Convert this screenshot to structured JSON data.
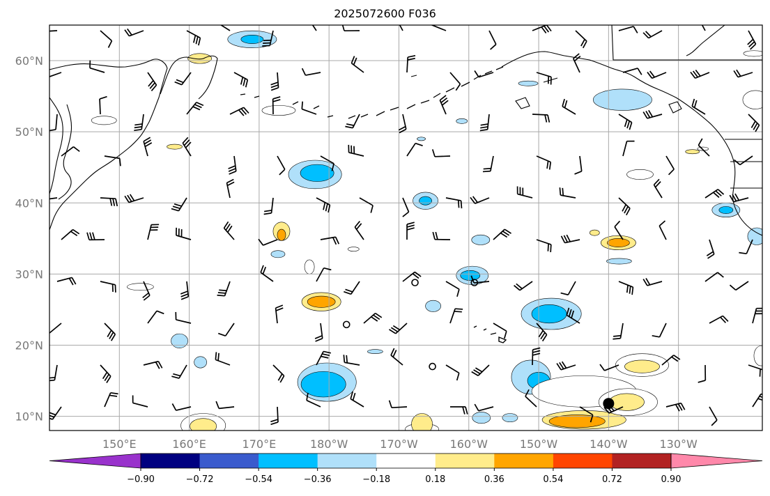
{
  "title": "2025072600 F036",
  "map": {
    "lon_range_east": [
      140,
      242
    ],
    "lat_range": [
      8,
      65
    ],
    "lat_ticks": [
      {
        "lat": 10,
        "label": "10°N"
      },
      {
        "lat": 20,
        "label": "20°N"
      },
      {
        "lat": 30,
        "label": "30°N"
      },
      {
        "lat": 40,
        "label": "40°N"
      },
      {
        "lat": 50,
        "label": "50°N"
      },
      {
        "lat": 60,
        "label": "60°N"
      }
    ],
    "lon_ticks": [
      {
        "lon": 150,
        "label": "150°E"
      },
      {
        "lon": 160,
        "label": "160°E"
      },
      {
        "lon": 170,
        "label": "170°E"
      },
      {
        "lon": 180,
        "label": "180°W"
      },
      {
        "lon": 190,
        "label": "170°W"
      },
      {
        "lon": 200,
        "label": "160°W"
      },
      {
        "lon": 210,
        "label": "150°W"
      },
      {
        "lon": 220,
        "label": "140°W"
      },
      {
        "lon": 230,
        "label": "130°W"
      }
    ],
    "gridlines": true,
    "coastline_color": "#000000",
    "grid_color": "#a8a8a8"
  },
  "colorbar": {
    "levels": [
      -0.9,
      -0.72,
      -0.54,
      -0.36,
      -0.18,
      0.18,
      0.36,
      0.54,
      0.72,
      0.9
    ],
    "labels": [
      "−0.90",
      "−0.72",
      "−0.54",
      "−0.36",
      "−0.18",
      "0.18",
      "0.36",
      "0.54",
      "0.72",
      "0.90"
    ],
    "colors": [
      "#9932cc",
      "#000080",
      "#3a5bcd",
      "#00bfff",
      "#b0e0fa",
      "#ffffff",
      "#ffec8b",
      "#ffa500",
      "#ff4500",
      "#b22222",
      "#ff88aa"
    ],
    "extend": "both"
  },
  "contours": [
    {
      "lon": 143,
      "lat": 12,
      "rx": 0,
      "ry": 0,
      "level": "none"
    },
    {
      "lon": 169,
      "lat": 63,
      "rx": 3.5,
      "ry": 1.2,
      "level": -0.36
    },
    {
      "lon": 169,
      "lat": 63,
      "rx": 1.6,
      "ry": 0.6,
      "level": -0.54
    },
    {
      "lon": 178,
      "lat": 44,
      "rx": 3.8,
      "ry": 2.0,
      "level": -0.36
    },
    {
      "lon": 178.3,
      "lat": 44.2,
      "rx": 2.4,
      "ry": 1.2,
      "level": -0.54
    },
    {
      "lon": 173.2,
      "lat": 36,
      "rx": 1.2,
      "ry": 1.3,
      "level": 0.36
    },
    {
      "lon": 173.2,
      "lat": 35.5,
      "rx": 0.6,
      "ry": 0.8,
      "level": 0.54
    },
    {
      "lon": 161.5,
      "lat": 60.3,
      "rx": 1.7,
      "ry": 0.7,
      "level": 0.36
    },
    {
      "lon": 147.8,
      "lat": 51.6,
      "rx": 1.8,
      "ry": 0.6,
      "level": 0.18
    },
    {
      "lon": 172.8,
      "lat": 53,
      "rx": 2.4,
      "ry": 0.7,
      "level": 0.18
    },
    {
      "lon": 153,
      "lat": 28.2,
      "rx": 1.9,
      "ry": 0.5,
      "level": 0.18
    },
    {
      "lon": 157.9,
      "lat": 47.9,
      "rx": 1.1,
      "ry": 0.35,
      "level": 0.36
    },
    {
      "lon": 183.5,
      "lat": 33.5,
      "rx": 0.8,
      "ry": 0.3,
      "level": 0.18
    },
    {
      "lon": 193.8,
      "lat": 40.3,
      "rx": 1.8,
      "ry": 1.2,
      "level": -0.36
    },
    {
      "lon": 193.8,
      "lat": 40.3,
      "rx": 0.9,
      "ry": 0.6,
      "level": -0.54
    },
    {
      "lon": 193.2,
      "lat": 49,
      "rx": 0.6,
      "ry": 0.25,
      "level": -0.36
    },
    {
      "lon": 200.5,
      "lat": 29.8,
      "rx": 2.3,
      "ry": 1.3,
      "level": -0.36
    },
    {
      "lon": 200.2,
      "lat": 29.8,
      "rx": 1.4,
      "ry": 0.7,
      "level": -0.54
    },
    {
      "lon": 201.7,
      "lat": 34.8,
      "rx": 1.3,
      "ry": 0.7,
      "level": -0.36
    },
    {
      "lon": 194.9,
      "lat": 25.5,
      "rx": 1.1,
      "ry": 0.8,
      "level": -0.36
    },
    {
      "lon": 211.8,
      "lat": 24.4,
      "rx": 4.3,
      "ry": 2.2,
      "level": -0.36
    },
    {
      "lon": 211.5,
      "lat": 24.4,
      "rx": 2.5,
      "ry": 1.3,
      "level": -0.54
    },
    {
      "lon": 178.9,
      "lat": 26.1,
      "rx": 2.8,
      "ry": 1.3,
      "level": 0.36
    },
    {
      "lon": 178.9,
      "lat": 26.1,
      "rx": 2.0,
      "ry": 0.8,
      "level": 0.54
    },
    {
      "lon": 177.2,
      "lat": 31,
      "rx": 0.7,
      "ry": 1.0,
      "level": 0.18
    },
    {
      "lon": 172.7,
      "lat": 32.8,
      "rx": 1.0,
      "ry": 0.5,
      "level": -0.36
    },
    {
      "lon": 179.7,
      "lat": 14.8,
      "rx": 4.2,
      "ry": 2.7,
      "level": -0.36
    },
    {
      "lon": 179.2,
      "lat": 14.5,
      "rx": 3.2,
      "ry": 1.8,
      "level": -0.54
    },
    {
      "lon": 208.9,
      "lat": 15.5,
      "rx": 2.8,
      "ry": 2.4,
      "level": -0.36
    },
    {
      "lon": 210.0,
      "lat": 15.0,
      "rx": 1.6,
      "ry": 1.2,
      "level": -0.54
    },
    {
      "lon": 186.6,
      "lat": 19.1,
      "rx": 1.1,
      "ry": 0.3,
      "level": -0.36
    },
    {
      "lon": 161.6,
      "lat": 17.6,
      "rx": 0.9,
      "ry": 0.8,
      "level": -0.36
    },
    {
      "lon": 158.6,
      "lat": 20.6,
      "rx": 1.2,
      "ry": 1.0,
      "level": -0.36
    },
    {
      "lon": 216.5,
      "lat": 13.5,
      "rx": 7.5,
      "ry": 2.2,
      "level": 0.18
    },
    {
      "lon": 216.5,
      "lat": 9.5,
      "rx": 6.0,
      "ry": 1.3,
      "level": 0.36
    },
    {
      "lon": 215.5,
      "lat": 9.3,
      "rx": 4.0,
      "ry": 0.9,
      "level": 0.54
    },
    {
      "lon": 224.8,
      "lat": 17.2,
      "rx": 3.8,
      "ry": 1.6,
      "level": 0.18
    },
    {
      "lon": 224.8,
      "lat": 17.0,
      "rx": 2.5,
      "ry": 0.9,
      "level": 0.36
    },
    {
      "lon": 222.8,
      "lat": 12.0,
      "rx": 4.2,
      "ry": 1.9,
      "level": 0.18
    },
    {
      "lon": 222.6,
      "lat": 12.0,
      "rx": 2.5,
      "ry": 1.2,
      "level": 0.36
    },
    {
      "lon": 162.0,
      "lat": 8.7,
      "rx": 3.2,
      "ry": 1.7,
      "level": 0.18
    },
    {
      "lon": 162.0,
      "lat": 8.6,
      "rx": 1.9,
      "ry": 1.1,
      "level": 0.36
    },
    {
      "lon": 193.3,
      "lat": 8.2,
      "rx": 2.4,
      "ry": 0.8,
      "level": 0.18
    },
    {
      "lon": 193.3,
      "lat": 8.9,
      "rx": 1.5,
      "ry": 1.5,
      "level": 0.36
    },
    {
      "lon": 201.8,
      "lat": 9.8,
      "rx": 1.3,
      "ry": 0.8,
      "level": -0.36
    },
    {
      "lon": 205.9,
      "lat": 9.8,
      "rx": 1.1,
      "ry": 0.6,
      "level": -0.36
    },
    {
      "lon": 224.5,
      "lat": 44,
      "rx": 1.9,
      "ry": 0.7,
      "level": 0.18
    },
    {
      "lon": 224.1,
      "lat": 39.5,
      "rx": 0.0,
      "ry": 0.0,
      "level": "none"
    },
    {
      "lon": 221.4,
      "lat": 34.4,
      "rx": 2.5,
      "ry": 1.0,
      "level": 0.36
    },
    {
      "lon": 221.4,
      "lat": 34.4,
      "rx": 1.6,
      "ry": 0.6,
      "level": 0.54
    },
    {
      "lon": 218.0,
      "lat": 35.8,
      "rx": 0.7,
      "ry": 0.4,
      "level": 0.36
    },
    {
      "lon": 221.5,
      "lat": 31.8,
      "rx": 1.8,
      "ry": 0.4,
      "level": -0.36
    },
    {
      "lon": 208.5,
      "lat": 56.8,
      "rx": 1.4,
      "ry": 0.35,
      "level": -0.36
    },
    {
      "lon": 222.0,
      "lat": 54.5,
      "rx": 4.2,
      "ry": 1.5,
      "level": -0.36
    },
    {
      "lon": 236.8,
      "lat": 39.0,
      "rx": 2.0,
      "ry": 1.0,
      "level": -0.36
    },
    {
      "lon": 236.8,
      "lat": 39.0,
      "rx": 1.0,
      "ry": 0.5,
      "level": -0.54
    },
    {
      "lon": 241.2,
      "lat": 35.3,
      "rx": 1.3,
      "ry": 1.2,
      "level": -0.36
    },
    {
      "lon": 241.0,
      "lat": 54.5,
      "rx": 1.8,
      "ry": 1.3,
      "level": 0.18
    },
    {
      "lon": 240.8,
      "lat": 61.0,
      "rx": 1.5,
      "ry": 0.4,
      "level": 0.18
    },
    {
      "lon": 232.0,
      "lat": 47.2,
      "rx": 1.0,
      "ry": 0.3,
      "level": 0.36
    },
    {
      "lon": 233.5,
      "lat": 47.6,
      "rx": 0.8,
      "ry": 0.25,
      "level": 0.18
    },
    {
      "lon": 241.8,
      "lat": 18.5,
      "rx": 1.0,
      "ry": 1.4,
      "level": 0.18
    },
    {
      "lon": 199.0,
      "lat": 51.5,
      "rx": 0.8,
      "ry": 0.35,
      "level": -0.36
    }
  ],
  "markers": [
    {
      "lon": 192.3,
      "lat": 28.8,
      "type": "open"
    },
    {
      "lon": 200.8,
      "lat": 28.8,
      "type": "open"
    },
    {
      "lon": 182.5,
      "lat": 22.9,
      "type": "open"
    },
    {
      "lon": 194.8,
      "lat": 17.0,
      "type": "open"
    },
    {
      "lon": 220.0,
      "lat": 11.8,
      "type": "filled"
    }
  ]
}
